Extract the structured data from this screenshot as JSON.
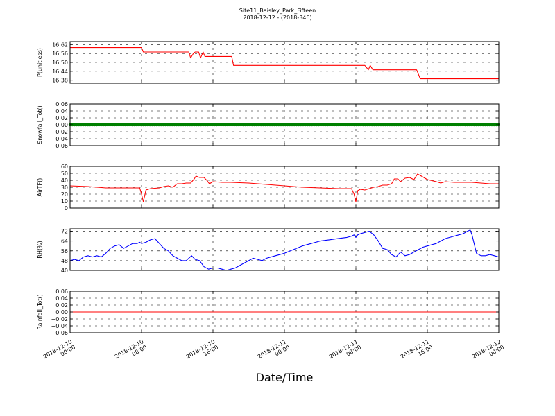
{
  "figure": {
    "title": "Site11_Baisley_Park_Fifteen",
    "subtitle": "2018-12-12 - (2018-346)",
    "xlabel": "Date/Time"
  },
  "chart_data": [
    {
      "type": "line",
      "ylabel": "P(unitless)",
      "ylim": [
        16.36,
        16.64
      ],
      "yticks": [
        16.38,
        16.44,
        16.5,
        16.56,
        16.62
      ],
      "ytick_labels": [
        "16.38",
        "16.44",
        "16.50",
        "16.56",
        "16.62"
      ],
      "grid": true,
      "series": [
        {
          "color": "#ff0000",
          "x": [
            0,
            8,
            8.2,
            11,
            13.3,
            13.5,
            13.8,
            14,
            14.4,
            14.6,
            14.9,
            15.1,
            18.1,
            18.3,
            33,
            33.4,
            33.6,
            33.9,
            34.1,
            38.8,
            39,
            39.2,
            48
          ],
          "y": [
            16.6,
            16.6,
            16.57,
            16.57,
            16.57,
            16.53,
            16.56,
            16.57,
            16.57,
            16.53,
            16.57,
            16.54,
            16.54,
            16.48,
            16.48,
            16.45,
            16.48,
            16.45,
            16.45,
            16.45,
            16.42,
            16.39,
            16.39
          ]
        }
      ]
    },
    {
      "type": "line",
      "ylabel": "Snowfall_Tot()",
      "ylim": [
        -0.06,
        0.06
      ],
      "yticks": [
        -0.06,
        -0.04,
        -0.02,
        0.0,
        0.02,
        0.04,
        0.06
      ],
      "ytick_labels": [
        "−0.06",
        "−0.04",
        "−0.02",
        "0.00",
        "0.02",
        "0.04",
        "0.06"
      ],
      "grid": true,
      "series": [
        {
          "color": "#008000",
          "marker": "dot",
          "x": [
            0,
            48
          ],
          "y": [
            0,
            0
          ]
        }
      ]
    },
    {
      "type": "line",
      "ylabel": "AirTF()",
      "ylim": [
        0,
        60
      ],
      "yticks": [
        0,
        10,
        20,
        30,
        40,
        50,
        60
      ],
      "ytick_labels": [
        "0",
        "10",
        "20",
        "30",
        "40",
        "50",
        "60"
      ],
      "grid": true,
      "series": [
        {
          "color": "#ff0000",
          "x": [
            0,
            2,
            3,
            4,
            5,
            6,
            7,
            7.8,
            8.0,
            8.2,
            8.5,
            9,
            10,
            10.5,
            11,
            11.5,
            12,
            12.5,
            13,
            13.5,
            13.9,
            14.1,
            14.5,
            15,
            15.3,
            15.6,
            16,
            17,
            18,
            20,
            22,
            24,
            26,
            28,
            30,
            31.5,
            31.8,
            32.0,
            32.2,
            32.5,
            33,
            33.5,
            34,
            34.5,
            35,
            35.5,
            36,
            36.3,
            36.7,
            37,
            37.5,
            38,
            38.5,
            38.9,
            39.2,
            39.6,
            40,
            41,
            41.5,
            42,
            43,
            44,
            45,
            46,
            47,
            48
          ],
          "y": [
            32,
            31,
            30,
            29,
            29,
            29,
            29,
            29,
            20,
            9,
            26,
            28,
            29,
            31,
            32,
            30,
            35,
            35,
            36,
            36,
            42,
            46,
            44,
            44,
            40,
            35,
            38,
            37,
            37,
            36,
            34,
            32,
            30,
            29,
            28,
            28,
            20,
            9,
            25,
            27,
            26,
            28,
            30,
            31,
            33,
            33,
            35,
            42,
            42,
            38,
            43,
            44,
            41,
            49,
            47,
            44,
            41,
            38,
            36,
            38,
            37,
            37,
            37,
            36,
            35,
            35
          ]
        }
      ]
    },
    {
      "type": "line",
      "ylabel": "RH(%)",
      "ylim": [
        40,
        74
      ],
      "yticks": [
        40,
        48,
        56,
        64,
        72
      ],
      "ytick_labels": [
        "40",
        "48",
        "56",
        "64",
        "72"
      ],
      "grid": true,
      "series": [
        {
          "color": "#0000ff",
          "x": [
            0,
            0.5,
            1,
            1.5,
            2,
            2.5,
            3,
            3.5,
            4,
            4.5,
            5,
            5.5,
            6,
            6.5,
            7,
            7.5,
            7.8,
            8,
            8.5,
            9,
            9.5,
            10,
            10.5,
            11,
            11.5,
            12,
            12.5,
            13,
            13.3,
            13.6,
            14,
            14.5,
            15,
            15.5,
            16,
            16.5,
            17,
            17.5,
            18,
            18.5,
            19,
            19.5,
            20,
            20.5,
            21,
            21.5,
            22,
            23,
            24,
            25,
            26,
            27,
            28,
            29,
            30,
            31,
            31.5,
            31.8,
            32,
            32.2,
            32.5,
            33,
            33.5,
            34,
            34.5,
            35,
            35.5,
            36,
            36.5,
            37,
            37.5,
            38,
            38.5,
            39,
            39.5,
            40,
            40.5,
            41,
            42,
            43,
            43.5,
            44,
            44.5,
            44.8,
            45,
            45.5,
            46,
            46.5,
            47,
            47.5,
            48
          ],
          "y": [
            48,
            49,
            48,
            51,
            52,
            51,
            52,
            51,
            54,
            58,
            60,
            61,
            58,
            60,
            62,
            62,
            63,
            62,
            63,
            65,
            66,
            62,
            58,
            56,
            52,
            50,
            48,
            48,
            50,
            52,
            49,
            48,
            43,
            41,
            42,
            42,
            41,
            40,
            41,
            42,
            44,
            46,
            48,
            50,
            49,
            48,
            50,
            52,
            54,
            57,
            60,
            62,
            64,
            65,
            66,
            67,
            68,
            69,
            67,
            69,
            70,
            71,
            72,
            69,
            64,
            58,
            57,
            53,
            51,
            55,
            52,
            53,
            55,
            57,
            59,
            60,
            61,
            62,
            66,
            68,
            69,
            70,
            72,
            73,
            69,
            54,
            52,
            52,
            53,
            52,
            51
          ]
        }
      ]
    },
    {
      "type": "line",
      "ylabel": "Rainfall_Tot()",
      "ylim": [
        -0.06,
        0.06
      ],
      "yticks": [
        -0.06,
        -0.04,
        -0.02,
        0.0,
        0.02,
        0.04,
        0.06
      ],
      "ytick_labels": [
        "−0.06",
        "−0.04",
        "−0.02",
        "0.00",
        "0.02",
        "0.04",
        "0.06"
      ],
      "grid": true,
      "series": [
        {
          "color": "#ff0000",
          "x": [
            0,
            48
          ],
          "y": [
            0,
            0
          ]
        }
      ]
    }
  ],
  "xaxis": {
    "ticks": [
      0,
      8,
      16,
      24,
      32,
      40,
      48
    ],
    "tick_labels": [
      [
        "2018-12-10",
        "00:00"
      ],
      [
        "2018-12-10",
        "08:00"
      ],
      [
        "2018-12-10",
        "16:00"
      ],
      [
        "2018-12-11",
        "00:00"
      ],
      [
        "2018-12-11",
        "08:00"
      ],
      [
        "2018-12-11",
        "16:00"
      ],
      [
        "2018-12-12",
        "00:00"
      ]
    ],
    "range": [
      0,
      48
    ]
  }
}
